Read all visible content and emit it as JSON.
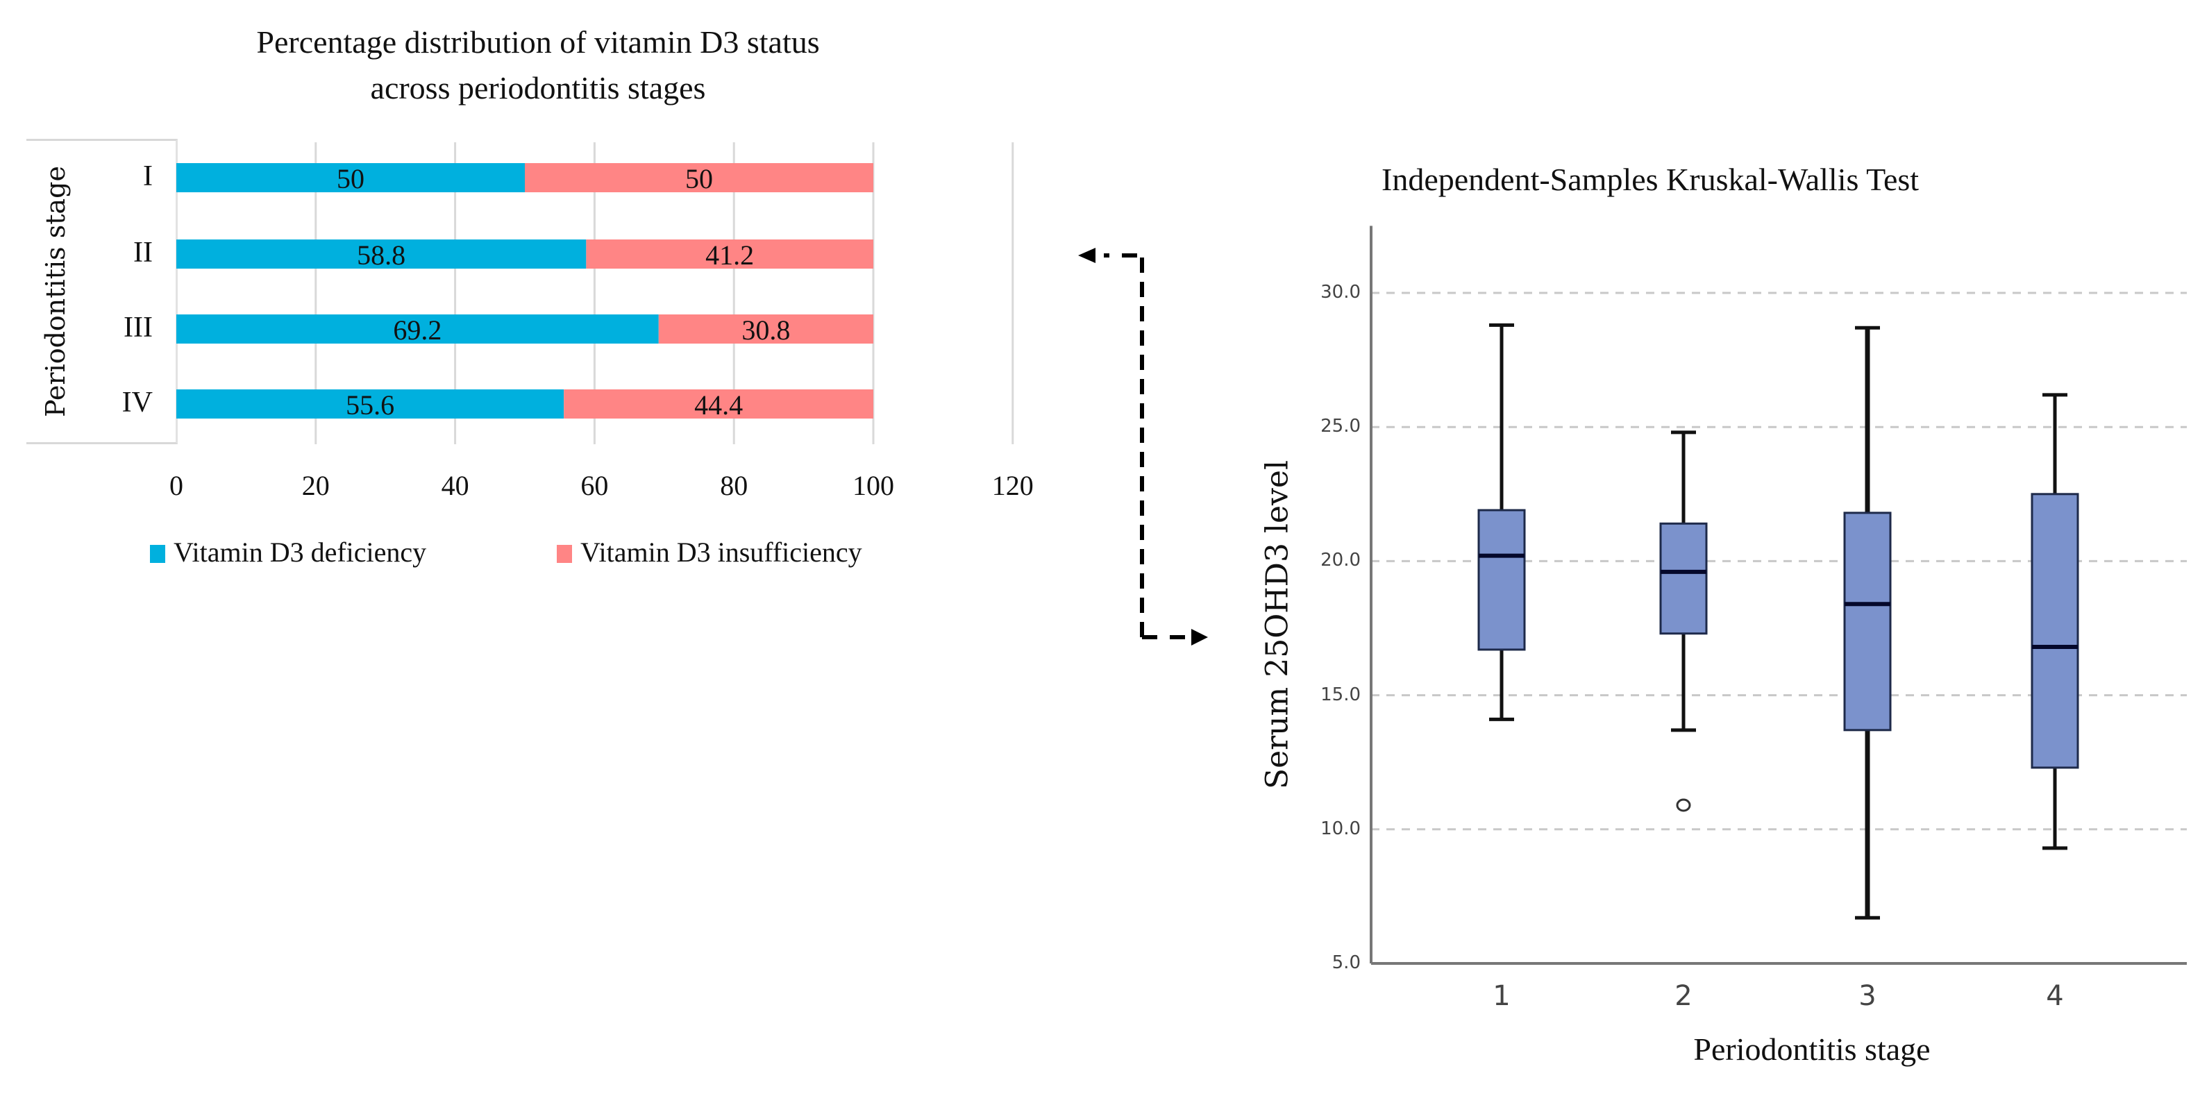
{
  "chart_data": [
    {
      "type": "bar",
      "orientation": "horizontal",
      "stacked": true,
      "title": "Percentage distribution of vitamin D3 status across periodontitis stages",
      "title_lines": [
        "Percentage distribution of vitamin D3 status",
        "across periodontitis stages"
      ],
      "ylabel": "Periodontitis stage",
      "xlabel": "",
      "categories": [
        "I",
        "II",
        "III",
        "IV"
      ],
      "series": [
        {
          "name": "Vitamin D3 deficiency",
          "color": "#00B0DE",
          "values": [
            50,
            58.8,
            69.2,
            55.6
          ]
        },
        {
          "name": "Vitamin D3 insufficiency",
          "color": "#FF8585",
          "values": [
            50,
            41.2,
            30.8,
            44.4
          ]
        }
      ],
      "data_labels": [
        [
          "50",
          "58.8",
          "69.2",
          "55.6"
        ],
        [
          "50",
          "41.2",
          "30.8",
          "44.4"
        ]
      ],
      "xlim": [
        0,
        120
      ],
      "x_ticks": [
        "0",
        "20",
        "40",
        "60",
        "80",
        "100",
        "120"
      ],
      "grid": "vertical",
      "legend": "bottom"
    },
    {
      "type": "boxplot",
      "title": "Independent-Samples Kruskal-Wallis Test",
      "xlabel": "Periodontitis stage",
      "ylabel": "Serum 25OHD3 level",
      "categories": [
        "1",
        "2",
        "3",
        "4"
      ],
      "box_color": "#7B92CC",
      "boxes": [
        {
          "category": "1",
          "whisker_low": 14.1,
          "q1": 16.7,
          "median": 20.2,
          "q3": 21.9,
          "whisker_high": 28.8,
          "outliers": []
        },
        {
          "category": "2",
          "whisker_low": 13.7,
          "q1": 17.3,
          "median": 19.6,
          "q3": 21.4,
          "whisker_high": 24.8,
          "outliers": [
            10.9
          ]
        },
        {
          "category": "3",
          "whisker_low": 6.7,
          "q1": 13.7,
          "median": 18.4,
          "q3": 21.8,
          "whisker_high": 28.7,
          "outliers": []
        },
        {
          "category": "4",
          "whisker_low": 9.3,
          "q1": 12.3,
          "median": 16.8,
          "q3": 22.5,
          "whisker_high": 26.2,
          "outliers": []
        }
      ],
      "ylim": [
        5.0,
        32.5
      ],
      "y_ticks": [
        "5.0",
        "10.0",
        "15.0",
        "20.0",
        "25.0",
        "30.0"
      ],
      "grid": "horizontal-dashed",
      "legend": "none"
    }
  ],
  "connector": {
    "icon": "dashed-elbow-double-arrow",
    "description": "bidirectional dashed arrow linking the two charts"
  }
}
